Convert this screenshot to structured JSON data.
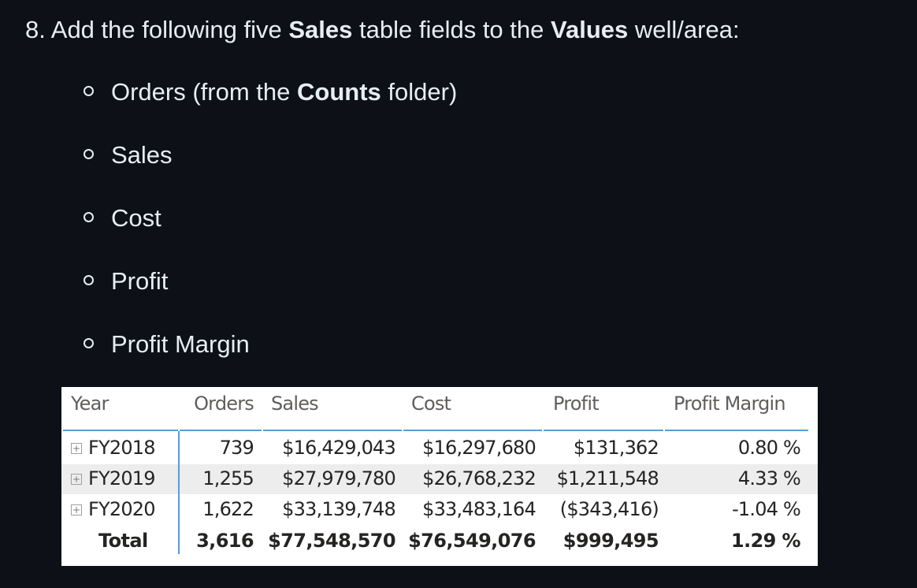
{
  "step": {
    "number": "8.",
    "prefix": "Add the following five",
    "table_name": "Sales",
    "middle": "table fields to the",
    "well_name": "Values",
    "suffix": "well/area:"
  },
  "fields": [
    {
      "label": "Orders (from the",
      "bold": "Counts",
      "after": "folder)"
    },
    {
      "label": "Sales"
    },
    {
      "label": "Cost"
    },
    {
      "label": "Profit"
    },
    {
      "label": "Profit Margin"
    }
  ],
  "matrix": {
    "headers": [
      "Year",
      "Orders",
      "Sales",
      "Cost",
      "Profit",
      "Profit Margin"
    ],
    "expand_glyph": "+",
    "rows": [
      {
        "year": "FY2018",
        "orders": "739",
        "sales": "$16,429,043",
        "cost": "$16,297,680",
        "profit": "$131,362",
        "margin": "0.80 %"
      },
      {
        "year": "FY2019",
        "orders": "1,255",
        "sales": "$27,979,780",
        "cost": "$26,768,232",
        "profit": "$1,211,548",
        "margin": "4.33 %"
      },
      {
        "year": "FY2020",
        "orders": "1,622",
        "sales": "$33,139,748",
        "cost": "$33,483,164",
        "profit": "($343,416)",
        "margin": "-1.04 %"
      }
    ],
    "total": {
      "label": "Total",
      "orders": "3,616",
      "sales": "$77,548,570",
      "cost": "$76,549,076",
      "profit": "$999,495",
      "margin": "1.29 %"
    }
  },
  "colors": {
    "background": "#0d1117",
    "text": "#e6edf3",
    "matrix_accent": "#5b9bd5",
    "row_highlight": "#ededed"
  }
}
